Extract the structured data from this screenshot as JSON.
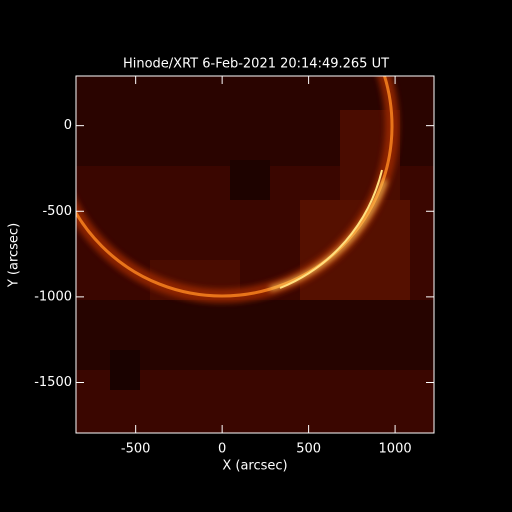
{
  "chart_data": {
    "type": "image",
    "title": "Hinode/XRT  6-Feb-2021 20:14:49.265 UT",
    "x_label": "X (arcsec)",
    "y_label": "Y (arcsec)",
    "xlim": [
      -845,
      1225
    ],
    "ylim": [
      -1795,
      290
    ],
    "xticks": [
      -500,
      0,
      500,
      1000
    ],
    "yticks": [
      -1500,
      -1000,
      -500,
      0
    ]
  }
}
